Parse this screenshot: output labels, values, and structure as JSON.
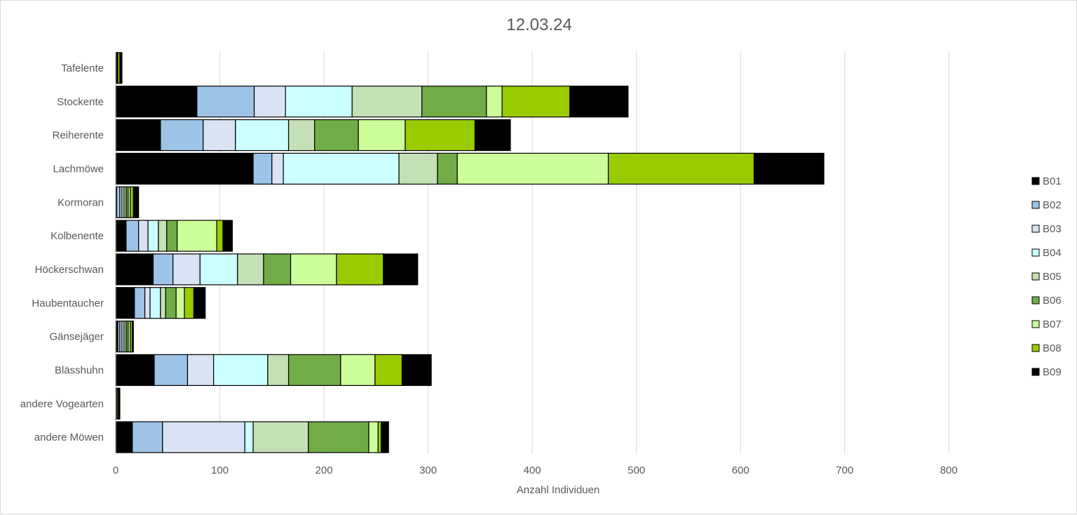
{
  "chart_data": {
    "type": "bar",
    "orientation": "horizontal",
    "stacked": true,
    "title": "12.03.24",
    "xlabel": "Anzahl Individuen",
    "ylabel": "",
    "xlim": [
      0,
      850
    ],
    "xticks": [
      0,
      100,
      200,
      300,
      400,
      500,
      600,
      700,
      800
    ],
    "grid": true,
    "legend_position": "right",
    "categories": [
      "Tafelente",
      "Stockente",
      "Reiherente",
      "Lachmöwe",
      "Kormoran",
      "Kolbenente",
      "Höckerschwan",
      "Haubentaucher",
      "Gänsejäger",
      "Blässhuhn",
      "andere Vogearten",
      "andere Möwen"
    ],
    "series": [
      {
        "name": "B01",
        "color": "#000000",
        "values": [
          2,
          78,
          43,
          132,
          1,
          10,
          36,
          18,
          2,
          37,
          0,
          16
        ]
      },
      {
        "name": "B02",
        "color": "#9dc3e6",
        "values": [
          0,
          55,
          41,
          18,
          3,
          12,
          19,
          10,
          2,
          32,
          0,
          29
        ]
      },
      {
        "name": "B03",
        "color": "#dae3f3",
        "values": [
          0,
          30,
          31,
          11,
          2,
          9,
          26,
          5,
          2,
          25,
          0,
          79
        ]
      },
      {
        "name": "B04",
        "color": "#ccffff",
        "values": [
          0,
          64,
          51,
          111,
          2,
          10,
          36,
          10,
          2,
          52,
          0,
          8
        ]
      },
      {
        "name": "B05",
        "color": "#c5e0b4",
        "values": [
          0,
          67,
          25,
          37,
          2,
          8,
          25,
          5,
          2,
          20,
          0,
          53
        ]
      },
      {
        "name": "B06",
        "color": "#70ad47",
        "values": [
          0,
          62,
          42,
          19,
          2,
          10,
          26,
          10,
          2,
          50,
          1,
          58
        ]
      },
      {
        "name": "B07",
        "color": "#ccff99",
        "values": [
          0,
          15,
          45,
          145,
          2,
          38,
          44,
          8,
          2,
          33,
          1,
          9
        ]
      },
      {
        "name": "B08",
        "color": "#99cc00",
        "values": [
          2,
          65,
          67,
          140,
          3,
          6,
          45,
          9,
          2,
          26,
          1,
          3
        ]
      },
      {
        "name": "B09",
        "color": "#000000",
        "values": [
          2,
          56,
          34,
          67,
          5,
          9,
          33,
          11,
          1,
          28,
          1,
          7
        ]
      }
    ]
  }
}
